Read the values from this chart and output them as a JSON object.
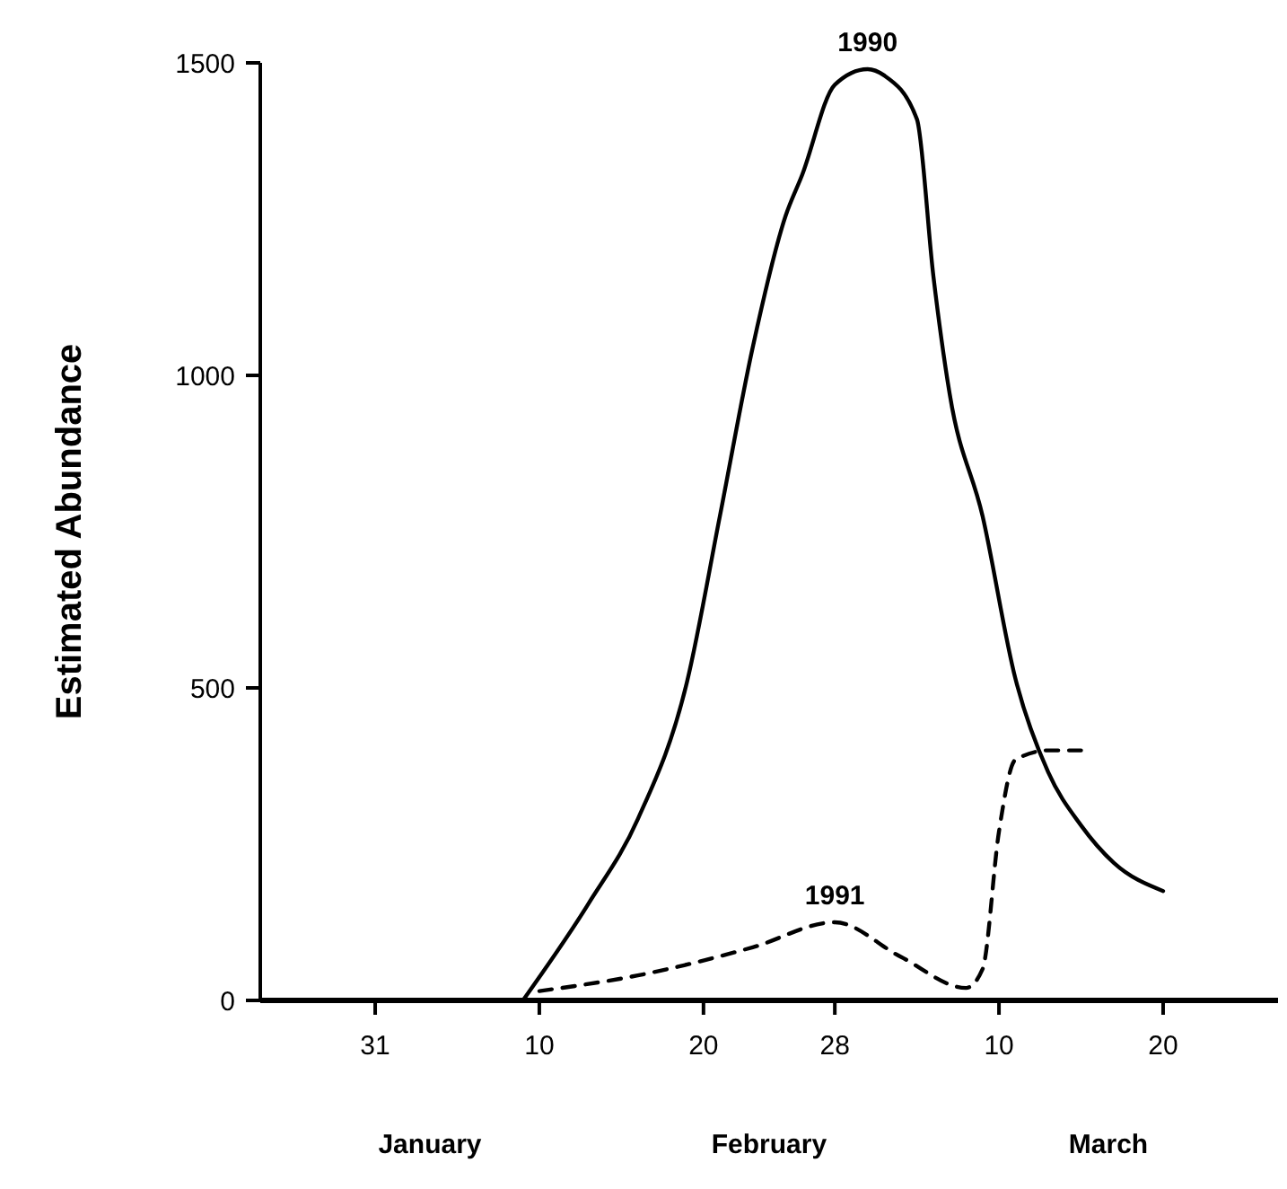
{
  "chart_data": {
    "type": "line",
    "ylabel": "Estimated Abundance",
    "xlim": [
      "--01-24",
      "--03-27"
    ],
    "xticks": [
      {
        "value": "--01-31",
        "label": "31"
      },
      {
        "value": "--02-10",
        "label": "10"
      },
      {
        "value": "--02-20",
        "label": "20"
      },
      {
        "value": "--02-28",
        "label": "28"
      },
      {
        "value": "--03-10",
        "label": "10"
      },
      {
        "value": "--03-20",
        "label": "20"
      }
    ],
    "ylim": [
      0,
      1500
    ],
    "yticks": [
      0,
      500,
      1000,
      1500
    ],
    "annotations": [
      "January",
      "February",
      "March"
    ],
    "series": [
      {
        "name": "1990",
        "color": "#000000",
        "line_style": "solid",
        "x": [
          "--02-09",
          "--02-13",
          "--02-16",
          "--02-19",
          "--02-21",
          "--02-23",
          "--02-25",
          "--02-26",
          "--02-28",
          "--03-02",
          "--03-03",
          "--03-05",
          "--03-06",
          "--03-07",
          "--03-09",
          "--03-11",
          "--03-13",
          "--03-15",
          "--03-17",
          "--03-20"
        ],
        "values": [
          0,
          155,
          290,
          510,
          775,
          1045,
          1255,
          1320,
          1465,
          1490,
          1480,
          1410,
          1160,
          970,
          775,
          515,
          365,
          280,
          220,
          175
        ]
      },
      {
        "name": "1991",
        "color": "#000000",
        "line_style": "dashed",
        "x": [
          "--02-10",
          "--02-16",
          "--02-23",
          "--02-28",
          "--03-04",
          "--03-08",
          "--03-09",
          "--03-10",
          "--03-11",
          "--03-13",
          "--03-15"
        ],
        "values": [
          15,
          40,
          85,
          125,
          70,
          20,
          50,
          270,
          385,
          400,
          400
        ]
      }
    ]
  }
}
